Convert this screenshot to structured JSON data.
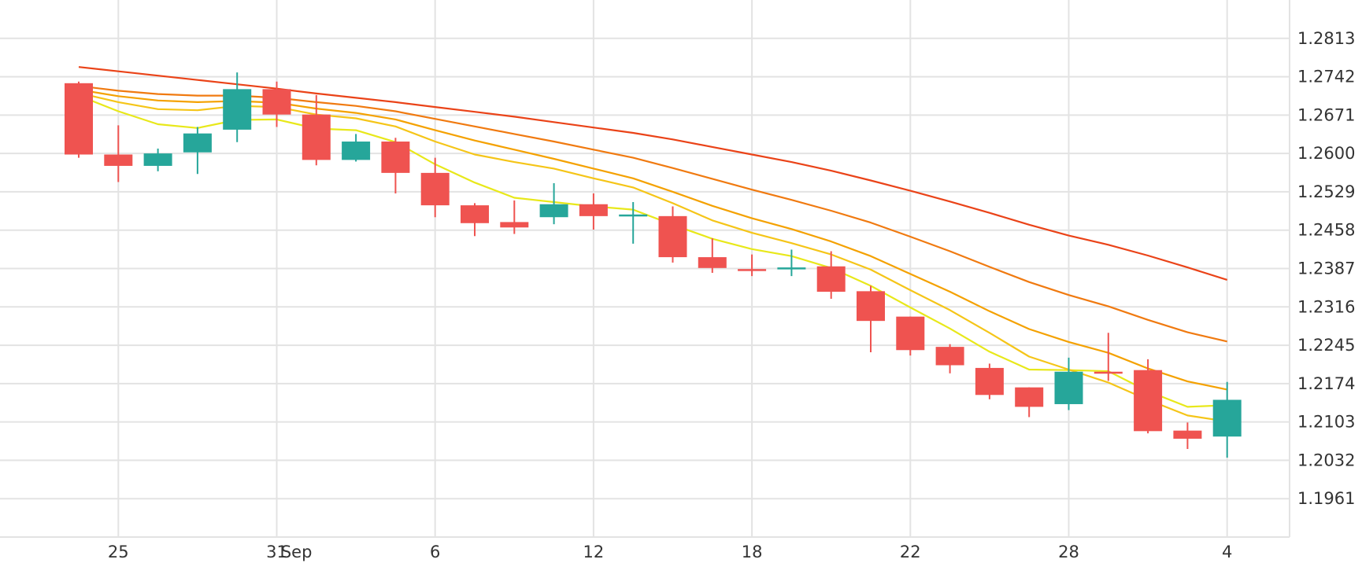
{
  "chart_data": {
    "type": "candlestick",
    "title": "",
    "xlabel": "",
    "ylabel": "",
    "x_tick_labels": [
      {
        "label": "25",
        "index": 1
      },
      {
        "label": "31",
        "index": 5
      },
      {
        "label": "Sep",
        "index": 5.5
      },
      {
        "label": "6",
        "index": 9
      },
      {
        "label": "12",
        "index": 13
      },
      {
        "label": "18",
        "index": 17
      },
      {
        "label": "22",
        "index": 21
      },
      {
        "label": "28",
        "index": 25
      },
      {
        "label": "4",
        "index": 29
      }
    ],
    "y_ticks": [
      "1.2813",
      "1.2742",
      "1.2671",
      "1.2600",
      "1.2529",
      "1.2458",
      "1.2387",
      "1.2316",
      "1.2245",
      "1.2174",
      "1.2103",
      "1.2032",
      "1.1961"
    ],
    "ylim": [
      1.189,
      1.2884
    ],
    "grid": true,
    "colors": {
      "up": "#26a69a",
      "down": "#ef5350",
      "grid": "#e3e3e3",
      "text": "#333333"
    },
    "candles": [
      {
        "o": 1.273,
        "h": 1.2733,
        "l": 1.2592,
        "c": 1.2598
      },
      {
        "o": 1.2598,
        "h": 1.2652,
        "l": 1.2547,
        "c": 1.2577
      },
      {
        "o": 1.2577,
        "h": 1.2609,
        "l": 1.2567,
        "c": 1.26
      },
      {
        "o": 1.2602,
        "h": 1.2649,
        "l": 1.2562,
        "c": 1.2637
      },
      {
        "o": 1.2644,
        "h": 1.275,
        "l": 1.2621,
        "c": 1.2719
      },
      {
        "o": 1.2719,
        "h": 1.2733,
        "l": 1.2649,
        "c": 1.2672
      },
      {
        "o": 1.2672,
        "h": 1.2708,
        "l": 1.2578,
        "c": 1.2588
      },
      {
        "o": 1.2588,
        "h": 1.2636,
        "l": 1.2585,
        "c": 1.2622
      },
      {
        "o": 1.2622,
        "h": 1.2629,
        "l": 1.2526,
        "c": 1.2564
      },
      {
        "o": 1.2564,
        "h": 1.2592,
        "l": 1.2482,
        "c": 1.2504
      },
      {
        "o": 1.2504,
        "h": 1.2508,
        "l": 1.2447,
        "c": 1.2471
      },
      {
        "o": 1.2473,
        "h": 1.2513,
        "l": 1.2451,
        "c": 1.2463
      },
      {
        "o": 1.2482,
        "h": 1.2545,
        "l": 1.2469,
        "c": 1.2506
      },
      {
        "o": 1.2506,
        "h": 1.2526,
        "l": 1.2459,
        "c": 1.2484
      },
      {
        "o": 1.2486,
        "h": 1.251,
        "l": 1.2433,
        "c": 1.2487
      },
      {
        "o": 1.2484,
        "h": 1.2502,
        "l": 1.2398,
        "c": 1.2408
      },
      {
        "o": 1.2408,
        "h": 1.2443,
        "l": 1.2379,
        "c": 1.2388
      },
      {
        "o": 1.2386,
        "h": 1.2413,
        "l": 1.2373,
        "c": 1.2384
      },
      {
        "o": 1.2386,
        "h": 1.2422,
        "l": 1.2373,
        "c": 1.2389
      },
      {
        "o": 1.2391,
        "h": 1.2419,
        "l": 1.2331,
        "c": 1.2344
      },
      {
        "o": 1.2345,
        "h": 1.2355,
        "l": 1.2232,
        "c": 1.229
      },
      {
        "o": 1.2298,
        "h": 1.2298,
        "l": 1.2226,
        "c": 1.2236
      },
      {
        "o": 1.2242,
        "h": 1.2247,
        "l": 1.2193,
        "c": 1.2208
      },
      {
        "o": 1.2203,
        "h": 1.2211,
        "l": 1.2145,
        "c": 1.2153
      },
      {
        "o": 1.2167,
        "h": 1.2167,
        "l": 1.2112,
        "c": 1.2131
      },
      {
        "o": 1.2136,
        "h": 1.2222,
        "l": 1.2125,
        "c": 1.2196
      },
      {
        "o": 1.2196,
        "h": 1.2268,
        "l": 1.2179,
        "c": 1.2193
      },
      {
        "o": 1.2199,
        "h": 1.2219,
        "l": 1.2082,
        "c": 1.2086
      },
      {
        "o": 1.2087,
        "h": 1.2102,
        "l": 1.2053,
        "c": 1.2072
      },
      {
        "o": 1.2076,
        "h": 1.2177,
        "l": 1.2037,
        "c": 1.2144
      }
    ],
    "series": [
      {
        "color": "#e8e81a",
        "values": [
          1.2707,
          1.2678,
          1.2654,
          1.2647,
          1.2662,
          1.2663,
          1.2646,
          1.2643,
          1.2621,
          1.258,
          1.2546,
          1.2518,
          1.251,
          1.2502,
          1.2496,
          1.2468,
          1.2442,
          1.2423,
          1.241,
          1.2388,
          1.2355,
          1.2315,
          1.2276,
          1.2233,
          1.22,
          1.2199,
          1.2197,
          1.216,
          1.2131,
          1.2134
        ]
      },
      {
        "color": "#f5c518",
        "values": [
          1.2712,
          1.2695,
          1.2682,
          1.268,
          1.2688,
          1.2686,
          1.2672,
          1.2665,
          1.265,
          1.2622,
          1.2598,
          1.2584,
          1.2572,
          1.2554,
          1.2537,
          1.2508,
          1.2476,
          1.2453,
          1.2434,
          1.2413,
          1.2385,
          1.2347,
          1.231,
          1.2268,
          1.2224,
          1.22,
          1.2176,
          1.2144,
          1.2115,
          1.2104
        ]
      },
      {
        "color": "#f4a100",
        "values": [
          1.2718,
          1.2706,
          1.2698,
          1.2695,
          1.2697,
          1.2694,
          1.2683,
          1.2675,
          1.2663,
          1.2643,
          1.2624,
          1.2607,
          1.259,
          1.2572,
          1.2554,
          1.2529,
          1.2503,
          1.248,
          1.246,
          1.2437,
          1.241,
          1.2377,
          1.2344,
          1.2308,
          1.2275,
          1.2251,
          1.2231,
          1.2202,
          1.2178,
          1.2163
        ]
      },
      {
        "color": "#f07a10",
        "values": [
          1.2725,
          1.2716,
          1.271,
          1.2707,
          1.2707,
          1.2703,
          1.2695,
          1.2688,
          1.2678,
          1.2664,
          1.265,
          1.2636,
          1.2622,
          1.2607,
          1.2592,
          1.2573,
          1.2553,
          1.2533,
          1.2514,
          1.2494,
          1.2472,
          1.2446,
          1.2419,
          1.239,
          1.2362,
          1.2338,
          1.2317,
          1.2292,
          1.2269,
          1.2252
        ]
      },
      {
        "color": "#ea4318",
        "values": [
          1.276,
          1.2752,
          1.2744,
          1.2736,
          1.2728,
          1.272,
          1.2711,
          1.2703,
          1.2695,
          1.2686,
          1.2677,
          1.2668,
          1.2658,
          1.2648,
          1.2638,
          1.2626,
          1.2612,
          1.2598,
          1.2584,
          1.2568,
          1.255,
          1.2531,
          1.2511,
          1.249,
          1.2468,
          1.2448,
          1.2431,
          1.2411,
          1.2389,
          1.2366
        ]
      }
    ]
  }
}
